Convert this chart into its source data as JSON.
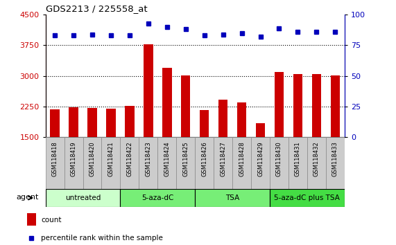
{
  "title": "GDS2213 / 225558_at",
  "samples": [
    "GSM118418",
    "GSM118419",
    "GSM118420",
    "GSM118421",
    "GSM118422",
    "GSM118423",
    "GSM118424",
    "GSM118425",
    "GSM118426",
    "GSM118427",
    "GSM118428",
    "GSM118429",
    "GSM118430",
    "GSM118431",
    "GSM118432",
    "GSM118433"
  ],
  "counts": [
    2180,
    2230,
    2210,
    2200,
    2260,
    3780,
    3200,
    3010,
    2170,
    2420,
    2360,
    1850,
    3100,
    3040,
    3040,
    3010
  ],
  "percentile": [
    83,
    83,
    84,
    83,
    83,
    93,
    90,
    88,
    83,
    84,
    85,
    82,
    89,
    86,
    86,
    86
  ],
  "group_labels": [
    "untreated",
    "5-aza-dC",
    "TSA",
    "5-aza-dC plus TSA"
  ],
  "group_starts": [
    0,
    4,
    8,
    12
  ],
  "group_ends": [
    4,
    8,
    12,
    16
  ],
  "group_colors": [
    "#ccffcc",
    "#77ee77",
    "#77ee77",
    "#44dd44"
  ],
  "ylim_left": [
    1500,
    4500
  ],
  "ylim_right": [
    0,
    100
  ],
  "yticks_left": [
    1500,
    2250,
    3000,
    3750,
    4500
  ],
  "yticks_right": [
    0,
    25,
    50,
    75,
    100
  ],
  "bar_color": "#cc0000",
  "dot_color": "#0000bb",
  "bar_width": 0.5,
  "gridline_values": [
    2250,
    3000,
    3750
  ],
  "tick_bg_color": "#cccccc",
  "tick_border_color": "#888888"
}
